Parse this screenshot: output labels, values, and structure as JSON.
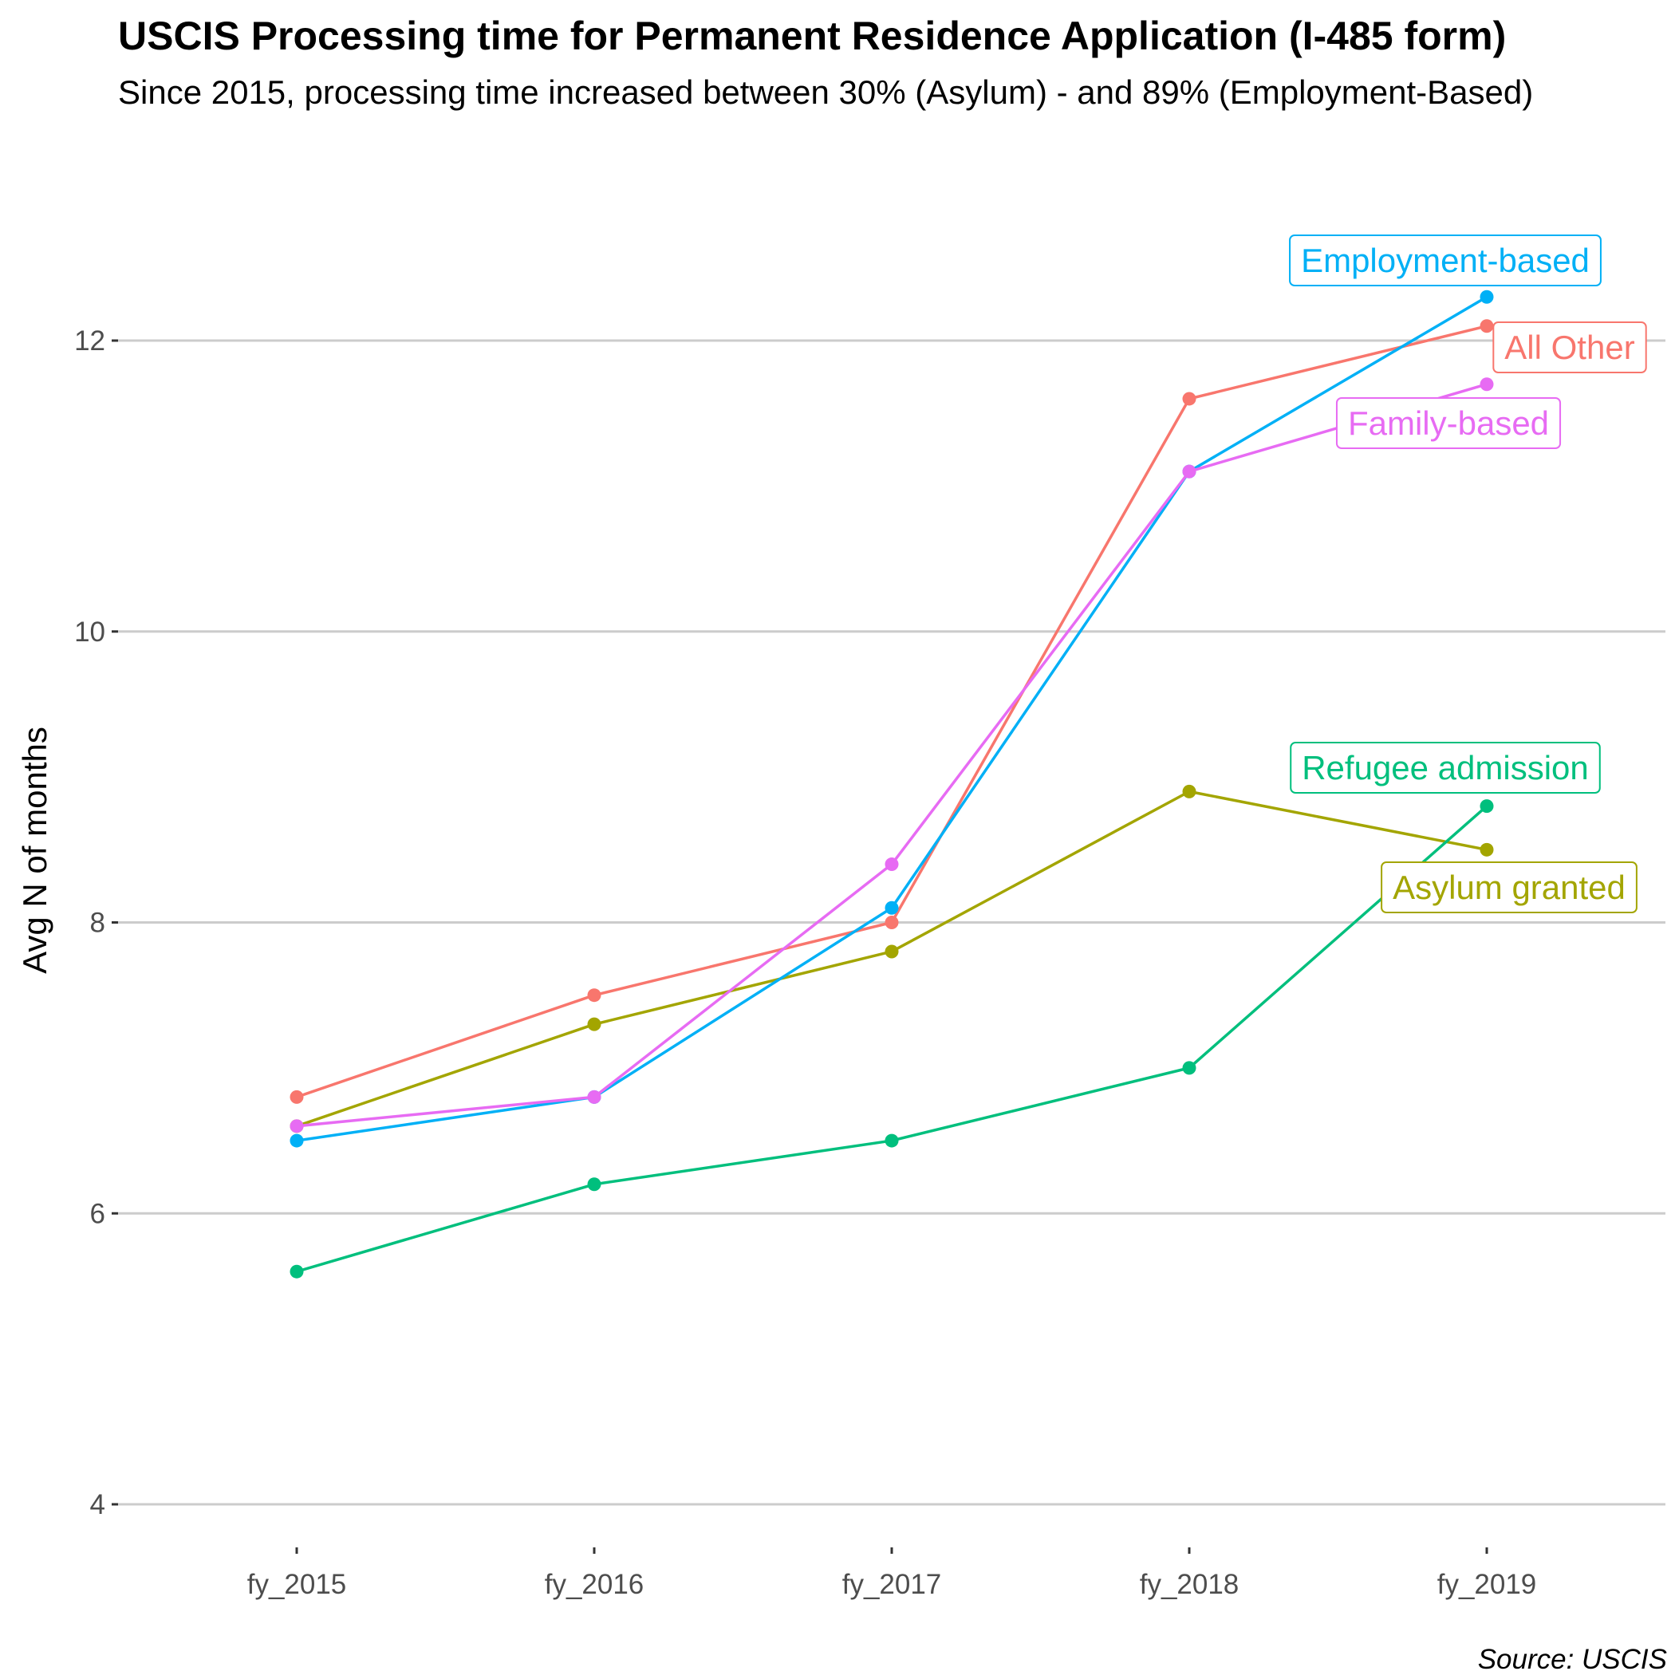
{
  "chart_data": {
    "type": "line",
    "title": "USCIS Processing time for Permanent Residence Application (I-485 form)",
    "subtitle": "Since 2015, processing time increased between 30% (Asylum) - and 89% (Employment-Based)",
    "caption": "Source: USCIS",
    "xlabel": "",
    "ylabel": "Avg N of months",
    "categories": [
      "fy_2015",
      "fy_2016",
      "fy_2017",
      "fy_2018",
      "fy_2019"
    ],
    "y_ticks": [
      "4",
      "6",
      "8",
      "10",
      "12"
    ],
    "ylim": [
      3.7,
      13.4
    ],
    "grid": "horizontal major lines",
    "legend": "direct labels at fy_2019 endpoints",
    "series": [
      {
        "name": "All Other",
        "color": "#F8766D",
        "values": [
          6.8,
          7.5,
          8.0,
          11.6,
          12.1
        ]
      },
      {
        "name": "Asylum granted",
        "color": "#A3A500",
        "values": [
          6.6,
          7.3,
          7.8,
          8.9,
          8.5
        ]
      },
      {
        "name": "Refugee admission",
        "color": "#00BF7D",
        "values": [
          5.6,
          6.2,
          6.5,
          7.0,
          8.8
        ]
      },
      {
        "name": "Employment-based",
        "color": "#00B0F6",
        "values": [
          6.5,
          6.8,
          8.1,
          11.1,
          12.3
        ]
      },
      {
        "name": "Family-based",
        "color": "#E76BF3",
        "values": [
          6.6,
          6.8,
          8.4,
          11.1,
          11.7
        ]
      }
    ]
  }
}
